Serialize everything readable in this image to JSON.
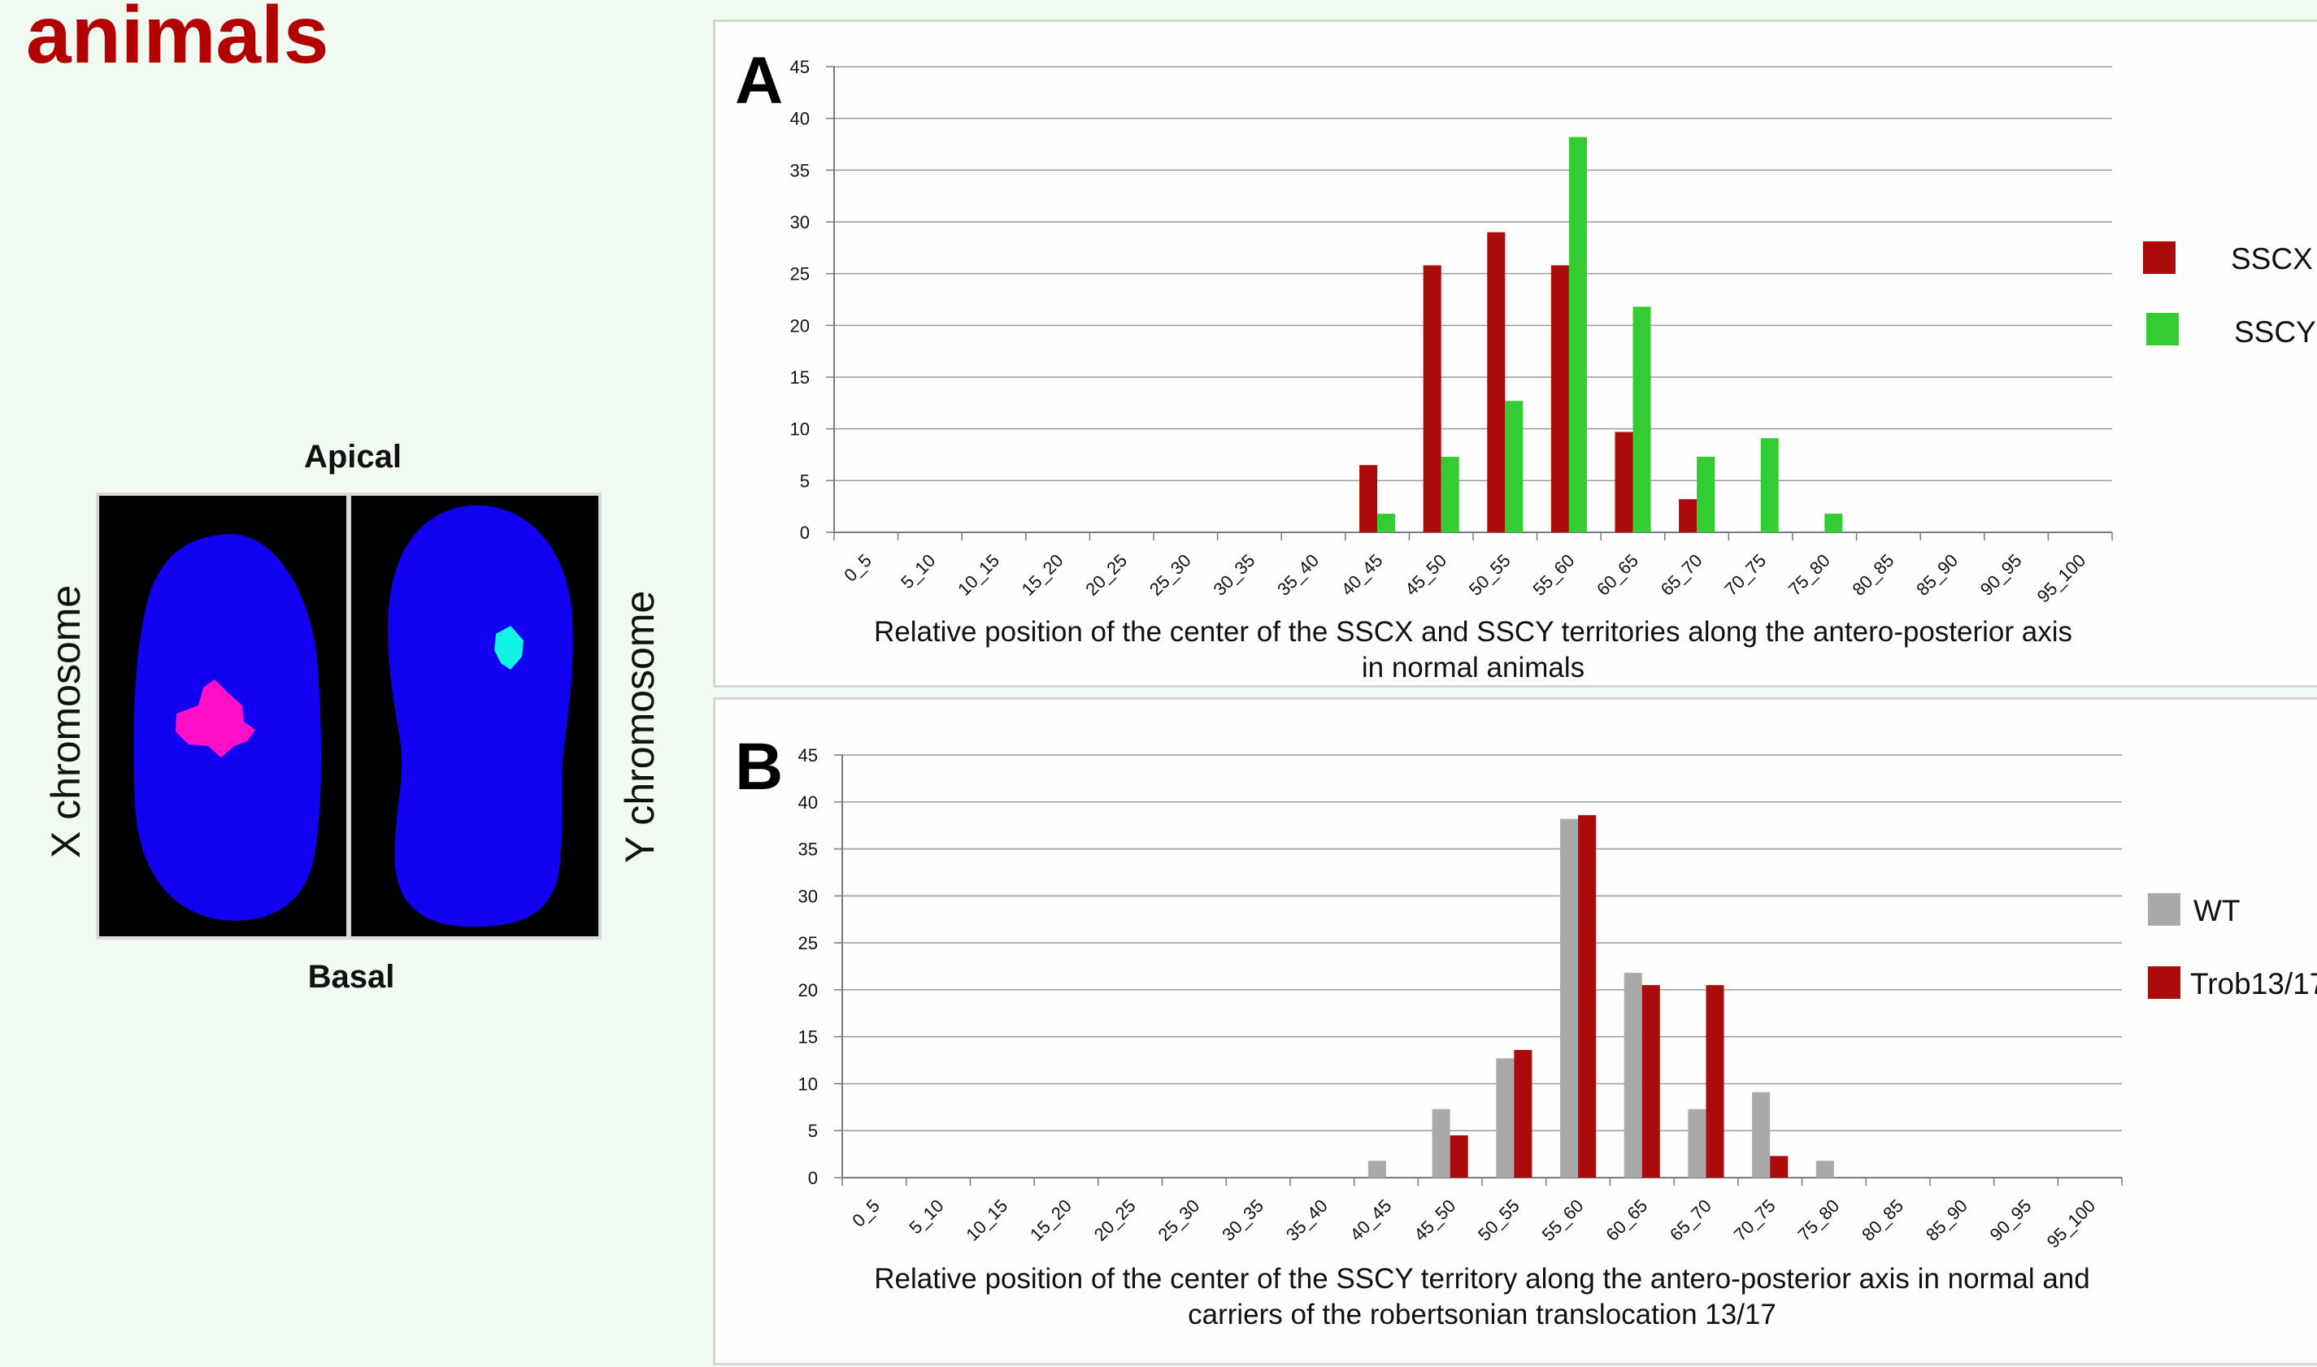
{
  "page": {
    "title": "animals"
  },
  "image_panel": {
    "apical_label": "Apical",
    "basal_label": "Basal",
    "x_label": "X chromosome",
    "y_label": "Y chromosome"
  },
  "colors": {
    "sscx": "#ab0b0b",
    "sscy": "#33cc33",
    "wt": "#a9a9a9",
    "trob": "#ab0b0b",
    "nucleus": "#1200f0",
    "x_signal": "#ff10c8",
    "y_signal": "#10f4e8",
    "title": "#b30000"
  },
  "chart_data": [
    {
      "panel_letter": "A",
      "type": "bar",
      "categories": [
        "0_5",
        "5_10",
        "10_15",
        "15_20",
        "20_25",
        "25_30",
        "30_35",
        "35_40",
        "40_45",
        "45_50",
        "50_55",
        "55_60",
        "60_65",
        "65_70",
        "70_75",
        "75_80",
        "80_85",
        "85_90",
        "90_95",
        "95_100"
      ],
      "series": [
        {
          "name": "SSCX",
          "color": "#ab0b0b",
          "values": [
            0,
            0,
            0,
            0,
            0,
            0,
            0,
            0,
            6.5,
            25.8,
            29,
            25.8,
            9.7,
            3.2,
            0,
            0,
            0,
            0,
            0,
            0
          ]
        },
        {
          "name": "SSCY",
          "color": "#33cc33",
          "values": [
            0,
            0,
            0,
            0,
            0,
            0,
            0,
            0,
            1.8,
            7.3,
            12.7,
            38.2,
            21.8,
            7.3,
            9.1,
            1.8,
            0,
            0,
            0,
            0
          ]
        }
      ],
      "ylim": [
        0,
        45
      ],
      "yticks": [
        "0",
        "5",
        "10",
        "15",
        "20",
        "25",
        "30",
        "35",
        "40",
        "45"
      ],
      "xlabel_line1": "Relative position of the center of the SSCX and SSCY territories  along the antero-posterior axis",
      "xlabel_line2": "in normal animals",
      "legend_position": "right",
      "grid": true
    },
    {
      "panel_letter": "B",
      "type": "bar",
      "categories": [
        "0_5",
        "5_10",
        "10_15",
        "15_20",
        "20_25",
        "25_30",
        "30_35",
        "35_40",
        "40_45",
        "45_50",
        "50_55",
        "55_60",
        "60_65",
        "65_70",
        "70_75",
        "75_80",
        "80_85",
        "85_90",
        "90_95",
        "95_100"
      ],
      "series": [
        {
          "name": "WT",
          "color": "#a9a9a9",
          "values": [
            0,
            0,
            0,
            0,
            0,
            0,
            0,
            0,
            1.8,
            7.3,
            12.7,
            38.2,
            21.8,
            7.3,
            9.1,
            1.8,
            0,
            0,
            0,
            0
          ]
        },
        {
          "name": "Trob13/17",
          "color": "#ab0b0b",
          "values": [
            0,
            0,
            0,
            0,
            0,
            0,
            0,
            0,
            0,
            4.5,
            13.6,
            38.6,
            20.5,
            20.5,
            2.3,
            0,
            0,
            0,
            0,
            0
          ]
        }
      ],
      "ylim": [
        0,
        45
      ],
      "yticks": [
        "0",
        "5",
        "10",
        "15",
        "20",
        "25",
        "30",
        "35",
        "40",
        "45"
      ],
      "xlabel_line1": "Relative position of the center of the SSCY territory  along the antero-posterior axis in normal and",
      "xlabel_line2": "carriers of the robertsonian translocation 13/17",
      "legend_position": "right",
      "grid": true
    }
  ]
}
